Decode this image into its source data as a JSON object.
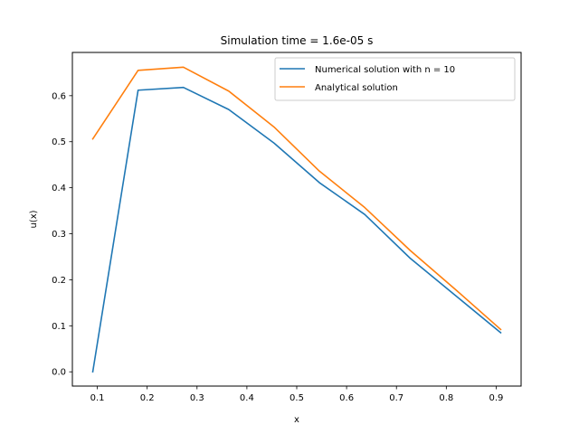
{
  "chart_data": {
    "type": "line",
    "title": "Simulation time = 1.6e-05 s",
    "xlabel": "x",
    "ylabel": "u(x)",
    "xlim": [
      0.05,
      0.95
    ],
    "ylim": [
      -0.031,
      0.694
    ],
    "xticks": [
      0.1,
      0.2,
      0.3,
      0.4,
      0.5,
      0.6,
      0.7,
      0.8,
      0.9
    ],
    "yticks": [
      0.0,
      0.1,
      0.2,
      0.3,
      0.4,
      0.5,
      0.6
    ],
    "grid": false,
    "legend_position": "upper right",
    "series": [
      {
        "name": "Numerical solution with n = 10",
        "color": "#1f77b4",
        "x": [
          0.0909,
          0.1818,
          0.2727,
          0.3636,
          0.4545,
          0.5455,
          0.6364,
          0.7273,
          0.8182,
          0.9091
        ],
        "y": [
          0.0,
          0.612,
          0.618,
          0.57,
          0.497,
          0.411,
          0.342,
          0.247,
          0.166,
          0.085
        ]
      },
      {
        "name": "Analytical solution",
        "color": "#ff7f0e",
        "x": [
          0.0909,
          0.1818,
          0.2727,
          0.3636,
          0.4545,
          0.5455,
          0.6364,
          0.7273,
          0.8182,
          0.9091
        ],
        "y": [
          0.506,
          0.655,
          0.662,
          0.61,
          0.532,
          0.436,
          0.357,
          0.264,
          0.179,
          0.092
        ]
      }
    ]
  }
}
